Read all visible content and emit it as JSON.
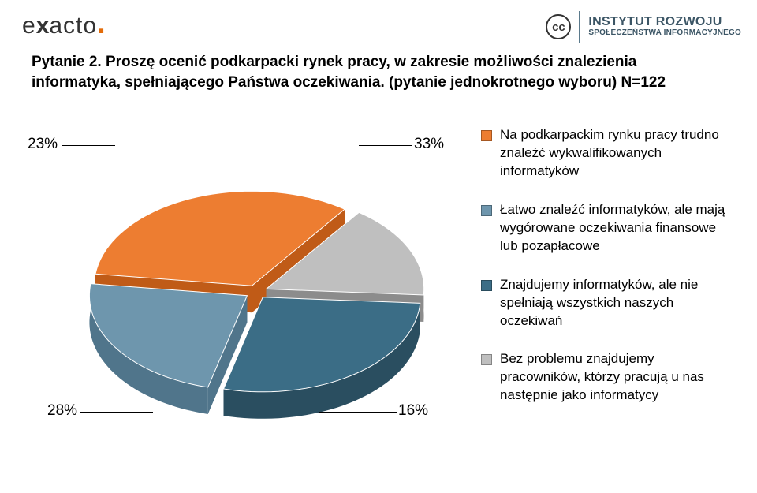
{
  "header": {
    "logo_text_1": "e",
    "logo_text_2": "x",
    "logo_text_3": "acto",
    "cc": "cc",
    "institute_line1": "INSTYTUT ROZWOJU",
    "institute_line2": "SPOŁECZEŃSTWA INFORMACYJNEGO"
  },
  "title": "Pytanie 2. Proszę ocenić podkarpacki rynek pracy, w zakresie możliwości znalezienia informatyka, spełniającego Państwa oczekiwania. (pytanie jednokrotnego wyboru) N=122",
  "chart": {
    "type": "pie-3d",
    "slices": [
      {
        "label": "Na podkarpackim rynku pracy trudno znaleźć wykwalifikowanych informatyków",
        "value": 33,
        "callout": "33%",
        "color": "#ed7d31",
        "side": "#c05b17"
      },
      {
        "label": "Łatwo znaleźć informatyków, ale mają wygórowane oczekiwania finansowe lub pozapłacowe",
        "value": 16,
        "callout": "16%",
        "color": "#bfbfbf",
        "side": "#8c8c8c"
      },
      {
        "label": "Znajdujemy informatyków, ale nie spełniają wszystkich naszych oczekiwań",
        "value": 28,
        "callout": "28%",
        "color": "#3b6d86",
        "side": "#2a4e60"
      },
      {
        "label": "Bez problemu znajdujemy pracowników, którzy pracują u nas następnie jako informatycy",
        "value": 23,
        "callout": "23%",
        "color": "#6e96ad",
        "side": "#50758b"
      }
    ],
    "explode_gap": 14,
    "background": "#ffffff"
  },
  "callouts": {
    "c23": "23%",
    "c33": "33%",
    "c28": "28%",
    "c16": "16%"
  },
  "legend_colors": [
    "#ed7d31",
    "#6e96ad",
    "#3b6d86",
    "#bfbfbf"
  ]
}
